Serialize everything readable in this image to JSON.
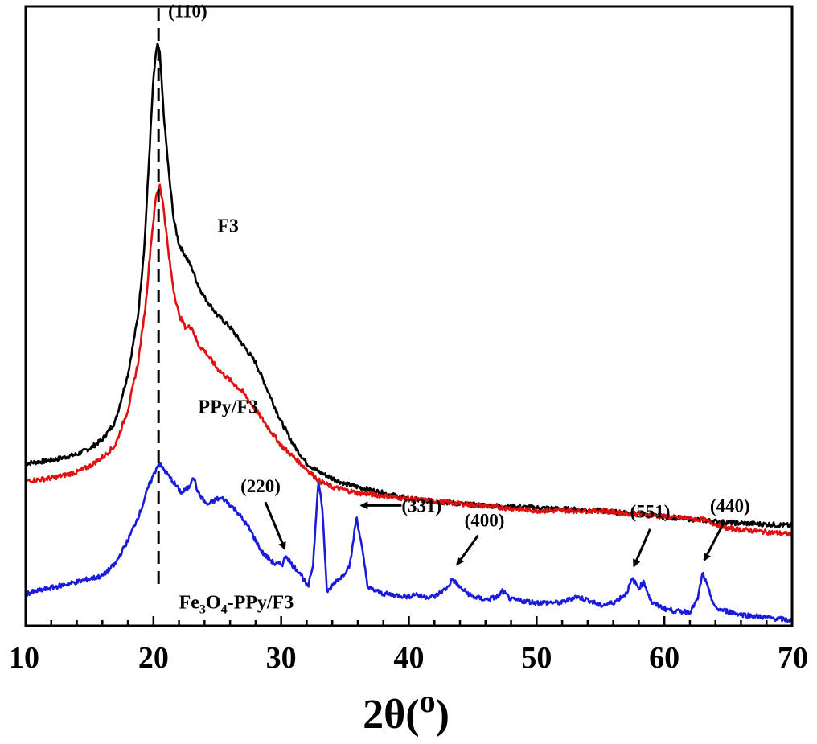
{
  "chart_data": {
    "type": "line",
    "title": "",
    "xlabel": "2θ(o)",
    "xlabel_main": "2θ(",
    "xlabel_sup": "o",
    "xlabel_close": ")",
    "ylabel": "",
    "xlim": [
      10,
      70
    ],
    "ylim": [
      0,
      1
    ],
    "x_ticks": [
      "10",
      "20",
      "30",
      "40",
      "50",
      "60",
      "70"
    ],
    "y_ticks_visible": false,
    "legend": "inline labels",
    "reference_line": {
      "x": 20.4,
      "style": "dashed",
      "label": "(110)"
    },
    "series": [
      {
        "name": "F3",
        "color": "#000000",
        "points": [
          [
            10,
            0.27
          ],
          [
            12,
            0.275
          ],
          [
            14,
            0.285
          ],
          [
            15,
            0.295
          ],
          [
            16,
            0.31
          ],
          [
            17,
            0.34
          ],
          [
            18,
            0.42
          ],
          [
            18.8,
            0.52
          ],
          [
            19.3,
            0.64
          ],
          [
            19.7,
            0.8
          ],
          [
            20.0,
            0.92
          ],
          [
            20.3,
            0.98
          ],
          [
            20.5,
            0.96
          ],
          [
            20.8,
            0.86
          ],
          [
            21.2,
            0.76
          ],
          [
            21.6,
            0.68
          ],
          [
            22,
            0.64
          ],
          [
            22.5,
            0.62
          ],
          [
            23,
            0.6
          ],
          [
            23.5,
            0.57
          ],
          [
            24,
            0.55
          ],
          [
            25,
            0.52
          ],
          [
            26,
            0.5
          ],
          [
            27,
            0.47
          ],
          [
            28,
            0.44
          ],
          [
            29,
            0.39
          ],
          [
            30,
            0.34
          ],
          [
            31,
            0.3
          ],
          [
            32,
            0.27
          ],
          [
            33,
            0.255
          ],
          [
            34,
            0.245
          ],
          [
            35,
            0.235
          ],
          [
            36,
            0.23
          ],
          [
            38,
            0.22
          ],
          [
            40,
            0.21
          ],
          [
            45,
            0.2
          ],
          [
            50,
            0.195
          ],
          [
            55,
            0.19
          ],
          [
            60,
            0.18
          ],
          [
            65,
            0.17
          ],
          [
            70,
            0.165
          ]
        ]
      },
      {
        "name": "PPy/F3",
        "color": "#e01010",
        "points": [
          [
            10,
            0.24
          ],
          [
            12,
            0.245
          ],
          [
            14,
            0.255
          ],
          [
            15,
            0.265
          ],
          [
            16,
            0.28
          ],
          [
            17,
            0.3
          ],
          [
            18,
            0.36
          ],
          [
            18.8,
            0.44
          ],
          [
            19.4,
            0.54
          ],
          [
            19.8,
            0.64
          ],
          [
            20.2,
            0.72
          ],
          [
            20.5,
            0.74
          ],
          [
            20.8,
            0.7
          ],
          [
            21.2,
            0.62
          ],
          [
            21.6,
            0.56
          ],
          [
            22,
            0.52
          ],
          [
            22.5,
            0.5
          ],
          [
            23,
            0.5
          ],
          [
            23.5,
            0.47
          ],
          [
            24,
            0.46
          ],
          [
            25,
            0.43
          ],
          [
            26,
            0.41
          ],
          [
            27,
            0.39
          ],
          [
            28,
            0.36
          ],
          [
            29,
            0.33
          ],
          [
            30,
            0.3
          ],
          [
            31,
            0.28
          ],
          [
            32,
            0.26
          ],
          [
            33,
            0.24
          ],
          [
            34,
            0.23
          ],
          [
            35,
            0.225
          ],
          [
            36,
            0.22
          ],
          [
            38,
            0.215
          ],
          [
            40,
            0.21
          ],
          [
            45,
            0.2
          ],
          [
            50,
            0.19
          ],
          [
            55,
            0.19
          ],
          [
            60,
            0.18
          ],
          [
            63,
            0.175
          ],
          [
            65,
            0.16
          ],
          [
            70,
            0.15
          ]
        ]
      },
      {
        "name": "Fe3O4-PPy/F3",
        "color": "#1a1adc",
        "points": [
          [
            10,
            0.05
          ],
          [
            12,
            0.06
          ],
          [
            14,
            0.07
          ],
          [
            16,
            0.08
          ],
          [
            17,
            0.1
          ],
          [
            18,
            0.14
          ],
          [
            19,
            0.19
          ],
          [
            19.6,
            0.23
          ],
          [
            20,
            0.25
          ],
          [
            20.4,
            0.27
          ],
          [
            20.8,
            0.26
          ],
          [
            21.5,
            0.24
          ],
          [
            22.2,
            0.22
          ],
          [
            22.8,
            0.23
          ],
          [
            23.1,
            0.25
          ],
          [
            23.5,
            0.22
          ],
          [
            24.2,
            0.2
          ],
          [
            25,
            0.21
          ],
          [
            25.5,
            0.21
          ],
          [
            26.5,
            0.19
          ],
          [
            27.5,
            0.16
          ],
          [
            28.5,
            0.12
          ],
          [
            29.5,
            0.1
          ],
          [
            30.1,
            0.1
          ],
          [
            30.4,
            0.115
          ],
          [
            30.8,
            0.1
          ],
          [
            31.5,
            0.085
          ],
          [
            32.1,
            0.06
          ],
          [
            32.5,
            0.1
          ],
          [
            32.9,
            0.24
          ],
          [
            33.2,
            0.2
          ],
          [
            33.6,
            0.05
          ],
          [
            34.2,
            0.07
          ],
          [
            34.8,
            0.08
          ],
          [
            35.4,
            0.1
          ],
          [
            35.9,
            0.18
          ],
          [
            36.3,
            0.13
          ],
          [
            36.8,
            0.06
          ],
          [
            38,
            0.05
          ],
          [
            40,
            0.045
          ],
          [
            40.5,
            0.05
          ],
          [
            41,
            0.045
          ],
          [
            42,
            0.045
          ],
          [
            43,
            0.06
          ],
          [
            43.4,
            0.075
          ],
          [
            44,
            0.06
          ],
          [
            45,
            0.045
          ],
          [
            46,
            0.04
          ],
          [
            47,
            0.045
          ],
          [
            47.3,
            0.055
          ],
          [
            48,
            0.04
          ],
          [
            50,
            0.035
          ],
          [
            52,
            0.035
          ],
          [
            53,
            0.045
          ],
          [
            54,
            0.04
          ],
          [
            55,
            0.03
          ],
          [
            56,
            0.035
          ],
          [
            57,
            0.05
          ],
          [
            57.5,
            0.075
          ],
          [
            58,
            0.06
          ],
          [
            58.4,
            0.07
          ],
          [
            59,
            0.035
          ],
          [
            60,
            0.025
          ],
          [
            61,
            0.02
          ],
          [
            62,
            0.02
          ],
          [
            62.6,
            0.04
          ],
          [
            63,
            0.085
          ],
          [
            63.4,
            0.06
          ],
          [
            64,
            0.025
          ],
          [
            65,
            0.02
          ],
          [
            66,
            0.015
          ],
          [
            68,
            0.01
          ],
          [
            70,
            0.005
          ]
        ]
      }
    ],
    "series_labels": [
      {
        "series": "F3",
        "text": "F3",
        "x": 25,
        "y": 0.66
      },
      {
        "series": "PPy/F3",
        "text": "PPy/F3",
        "x": 23.5,
        "y": 0.355
      },
      {
        "series": "Fe3O4-PPy/F3",
        "text": "Fe3O4-PPy/F3",
        "x": 22,
        "y": 0.025
      }
    ],
    "formula_label": {
      "parts": [
        {
          "text": "Fe",
          "sub": false
        },
        {
          "text": "3",
          "sub": true
        },
        {
          "text": "O",
          "sub": false
        },
        {
          "text": "4",
          "sub": true
        },
        {
          "text": "-PPy/F3",
          "sub": false
        }
      ]
    },
    "annotations": [
      {
        "text": "(110)",
        "x": 20.4,
        "y": 0.98,
        "arrow": false
      },
      {
        "text": "(220)",
        "x": 30.4,
        "y": 0.115,
        "arrow": true
      },
      {
        "text": "(331)",
        "x": 35.9,
        "y": 0.18,
        "arrow": true
      },
      {
        "text": "(400)",
        "x": 43.4,
        "y": 0.075,
        "arrow": true
      },
      {
        "text": "(551)",
        "x": 57.5,
        "y": 0.075,
        "arrow": true
      },
      {
        "text": "(440)",
        "x": 63.0,
        "y": 0.085,
        "arrow": true
      }
    ]
  }
}
